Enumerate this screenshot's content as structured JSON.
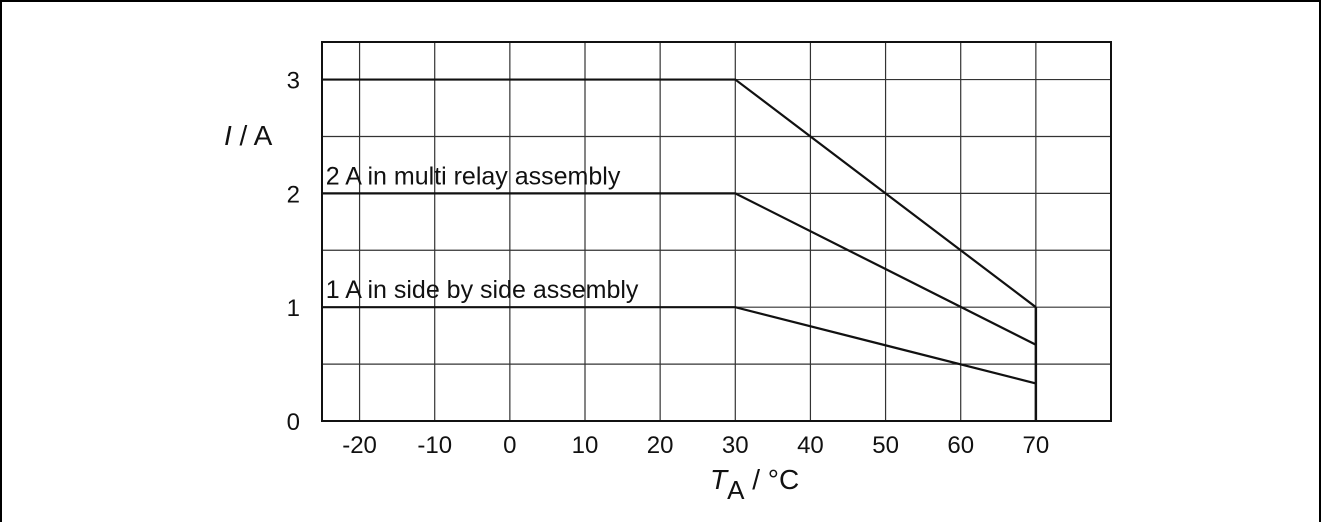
{
  "chart_data": {
    "type": "line",
    "xlabel": {
      "symbol": "T",
      "subscript": "A",
      "unit": " / °C"
    },
    "ylabel": {
      "symbol": "I",
      "unit": " / A"
    },
    "xlim": [
      -25,
      80
    ],
    "ylim": [
      0,
      3.33
    ],
    "x_ticks": [
      "-20",
      "-10",
      "0",
      "10",
      "20",
      "30",
      "40",
      "50",
      "60",
      "70"
    ],
    "y_ticks": [
      "0",
      "1",
      "2",
      "3"
    ],
    "grid": true,
    "series": [
      {
        "x": [
          -25,
          30,
          70
        ],
        "y": [
          3,
          3,
          1
        ]
      },
      {
        "name": "2 A in multi relay assembly",
        "x": [
          -25,
          30,
          70
        ],
        "y": [
          2,
          2,
          0.67
        ]
      },
      {
        "name": "1 A in side by side assembly",
        "x": [
          -25,
          30,
          70
        ],
        "y": [
          1,
          1,
          0.33
        ]
      }
    ],
    "annotations": [
      {
        "text": "2 A in multi relay assembly",
        "x": -24.5,
        "y": 2.08
      },
      {
        "text": "1 A in side by side assembly",
        "x": -24.5,
        "y": 1.08
      }
    ]
  }
}
